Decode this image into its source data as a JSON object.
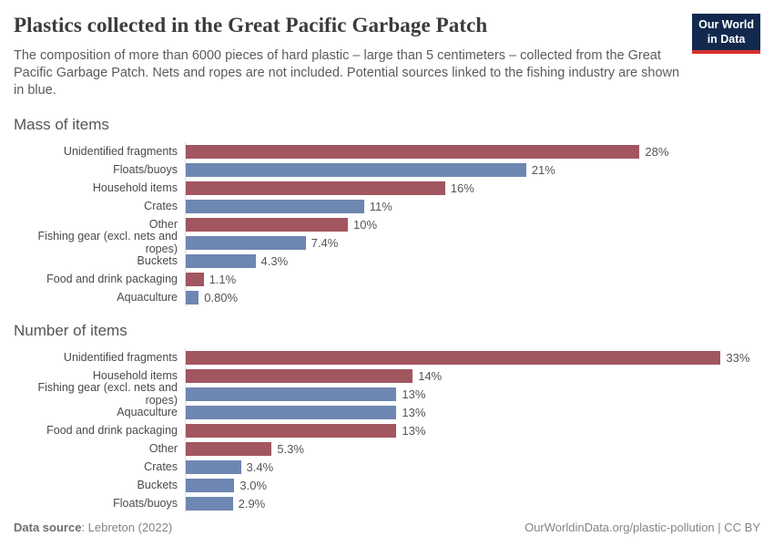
{
  "header": {
    "title": "Plastics collected in the Great Pacific Garbage Patch",
    "subtitle": "The composition of more than 6000 pieces of hard plastic – large than 5 centimeters – collected from the Great Pacific Garbage Patch. Nets and ropes are not included. Potential sources linked to the fishing industry are shown in blue.",
    "logo": {
      "line1": "Our World",
      "line2": "in Data"
    }
  },
  "colors": {
    "non_fishing_bar": "#a2565f",
    "fishing_bar": "#6e87b2",
    "logo_bg": "#12294d",
    "logo_accent": "#d8302f"
  },
  "chart_data": [
    {
      "type": "bar",
      "orientation": "horizontal",
      "title": "Mass of items",
      "unit": "%",
      "xlim": [
        0,
        34.7
      ],
      "grid": false,
      "legend": "none",
      "categories": [
        "Unidentified fragments",
        "Floats/buoys",
        "Household items",
        "Crates",
        "Other",
        "Fishing gear (excl. nets and ropes)",
        "Buckets",
        "Food and drink packaging",
        "Aquaculture"
      ],
      "values": [
        28,
        21,
        16,
        11,
        10,
        7.4,
        4.3,
        1.1,
        0.8
      ],
      "value_labels": [
        "28%",
        "21%",
        "16%",
        "11%",
        "10%",
        "7.4%",
        "4.3%",
        "1.1%",
        "0.80%"
      ],
      "fishing_source": [
        false,
        true,
        false,
        true,
        false,
        true,
        true,
        false,
        true
      ]
    },
    {
      "type": "bar",
      "orientation": "horizontal",
      "title": "Number of items",
      "unit": "%",
      "xlim": [
        0,
        34.7
      ],
      "grid": false,
      "legend": "none",
      "categories": [
        "Unidentified fragments",
        "Household items",
        "Fishing gear (excl. nets and ropes)",
        "Aquaculture",
        "Food and drink packaging",
        "Other",
        "Crates",
        "Buckets",
        "Floats/buoys"
      ],
      "values": [
        33,
        14,
        13,
        13,
        13,
        5.3,
        3.4,
        3.0,
        2.9
      ],
      "value_labels": [
        "33%",
        "14%",
        "13%",
        "13%",
        "13%",
        "5.3%",
        "3.4%",
        "3.0%",
        "2.9%"
      ],
      "fishing_source": [
        false,
        false,
        true,
        true,
        false,
        false,
        true,
        true,
        true
      ]
    }
  ],
  "footer": {
    "source_label": "Data source",
    "source_value": ": Lebreton (2022)",
    "credit": "OurWorldinData.org/plastic-pollution | CC BY"
  }
}
